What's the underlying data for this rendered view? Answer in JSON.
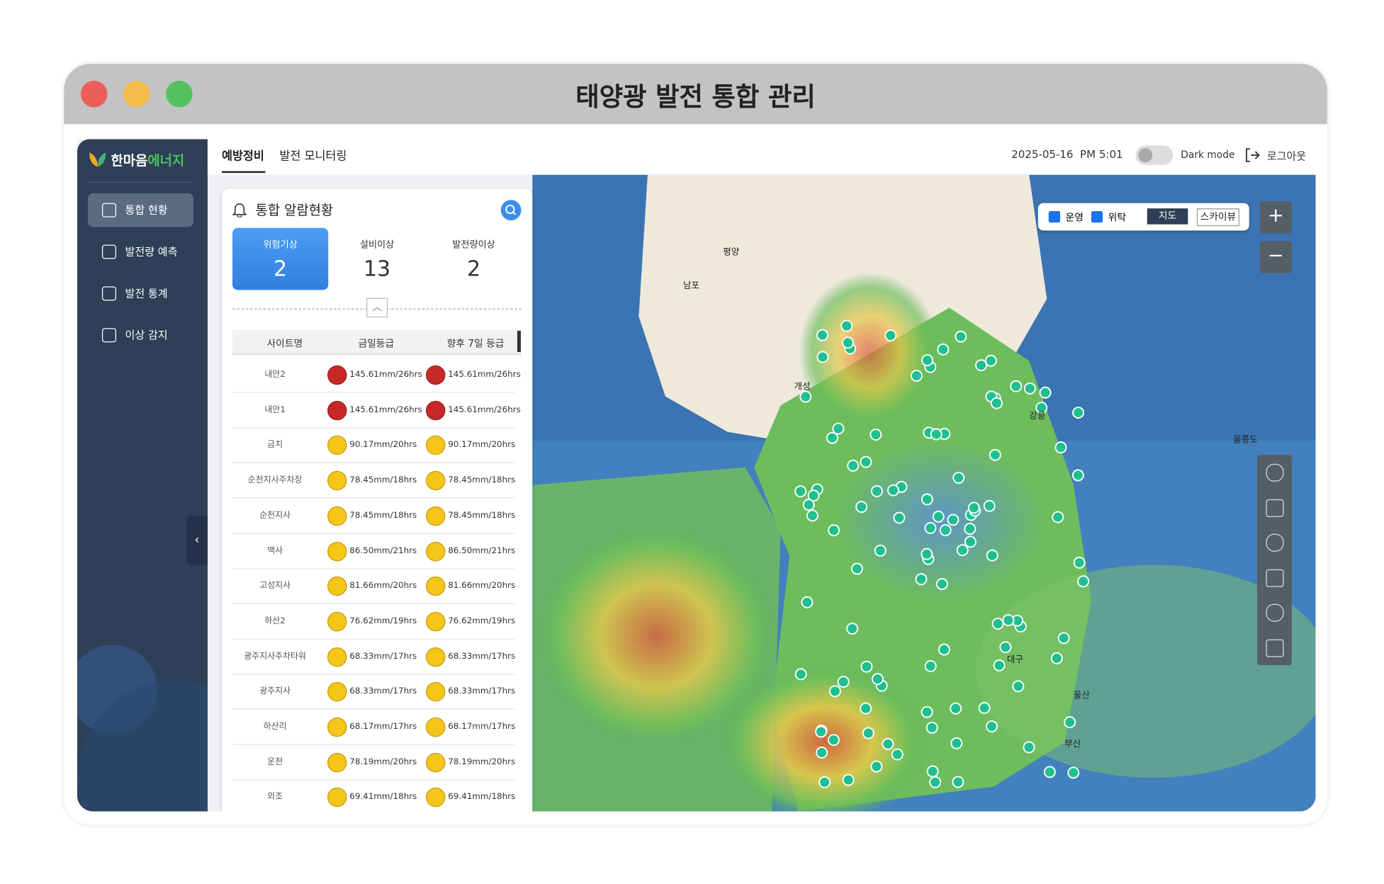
{
  "window": {
    "title": "태양광 발전 통합 관리"
  },
  "sidebar": {
    "logo": {
      "name": "한마음",
      "accent": "에너지"
    },
    "nav": [
      "통합 현황",
      "발전량 예측",
      "발전 통계",
      "이상 감지"
    ]
  },
  "header": {
    "tabs": [
      "예방정비",
      "발전 모니터링"
    ],
    "datetime": "2025-05-16  PM 5:01",
    "dark_mode": "Dark mode",
    "logout": "로그아웃"
  },
  "panel": {
    "title": "통합 알람현황",
    "summary": [
      {
        "label": "위험기상",
        "count": 2
      },
      {
        "label": "설비이상",
        "count": 13
      },
      {
        "label": "발전량이상",
        "count": 2
      }
    ],
    "table": {
      "columns": [
        "사이트명",
        "금일등급",
        "향후 7일 등급"
      ],
      "rows": [
        {
          "site": "내안2",
          "today": "145.61mm/26hrs",
          "week": "145.61mm/26hrs",
          "color": "#c62828"
        },
        {
          "site": "내안1",
          "today": "145.61mm/26hrs",
          "week": "145.61mm/26hrs",
          "color": "#c62828"
        },
        {
          "site": "금치",
          "today": "90.17mm/20hrs",
          "week": "90.17mm/20hrs",
          "color": "#f5c518"
        },
        {
          "site": "순천지사주차장",
          "today": "78.45mm/18hrs",
          "week": "78.45mm/18hrs",
          "color": "#f5c518"
        },
        {
          "site": "순천지사",
          "today": "78.45mm/18hrs",
          "week": "78.45mm/18hrs",
          "color": "#f5c518"
        },
        {
          "site": "맥사",
          "today": "86.50mm/21hrs",
          "week": "86.50mm/21hrs",
          "color": "#f5c518"
        },
        {
          "site": "고성지사",
          "today": "81.66mm/20hrs",
          "week": "81.66mm/20hrs",
          "color": "#f5c518"
        },
        {
          "site": "하산2",
          "today": "76.62mm/19hrs",
          "week": "76.62mm/19hrs",
          "color": "#f5c518"
        },
        {
          "site": "광주지사주차타워",
          "today": "68.33mm/17hrs",
          "week": "68.33mm/17hrs",
          "color": "#f5c518"
        },
        {
          "site": "광주지사",
          "today": "68.33mm/17hrs",
          "week": "68.33mm/17hrs",
          "color": "#f5c518"
        },
        {
          "site": "하산리",
          "today": "68.17mm/17hrs",
          "week": "68.17mm/17hrs",
          "color": "#f5c518"
        },
        {
          "site": "운천",
          "today": "78.19mm/20hrs",
          "week": "78.19mm/20hrs",
          "color": "#f5c518"
        },
        {
          "site": "외조",
          "today": "69.41mm/18hrs",
          "week": "69.41mm/18hrs",
          "color": "#f5c518"
        }
      ]
    }
  },
  "map": {
    "filters": [
      "운영",
      "위탁"
    ],
    "views": [
      "지도",
      "스카이뷰"
    ],
    "labels": [
      "평양",
      "남포",
      "개성",
      "강릉",
      "대구",
      "울산",
      "부산",
      "울릉도"
    ]
  }
}
